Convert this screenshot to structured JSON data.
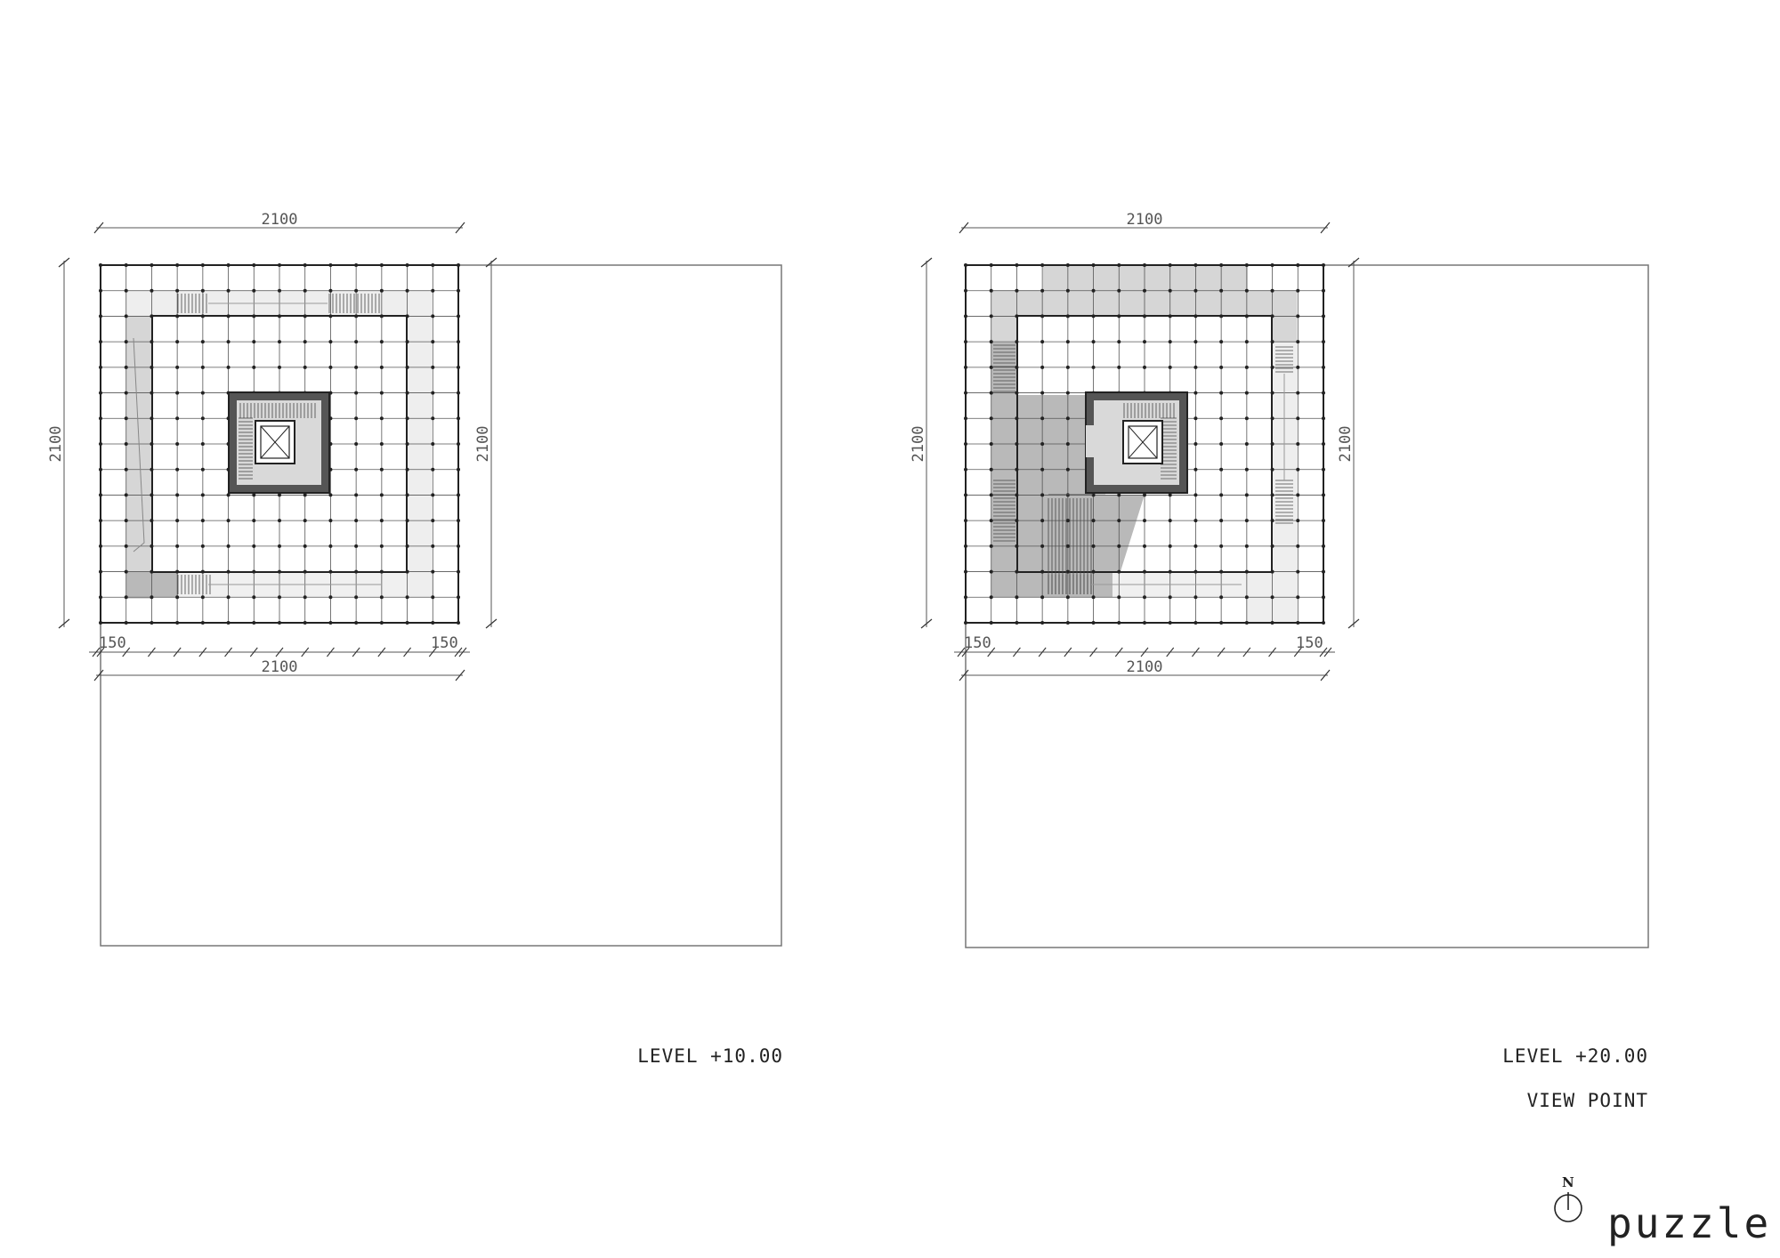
{
  "plans": [
    {
      "id": "level-10",
      "dim_top": "2100",
      "dim_left": "2100",
      "dim_right": "2100",
      "dim_bottom": "2100",
      "dim_offset_left": "150",
      "dim_offset_right": "150",
      "captions": [
        "LEVEL +10.00"
      ]
    },
    {
      "id": "level-20",
      "dim_top": "2100",
      "dim_left": "2100",
      "dim_right": "2100",
      "dim_bottom": "2100",
      "dim_offset_left": "150",
      "dim_offset_right": "150",
      "captions": [
        "LEVEL +20.00",
        "VIEW POINT"
      ]
    }
  ],
  "north_label": "N",
  "brand": "puzzle",
  "colors": {
    "line": "#222222",
    "thin_line": "#555555",
    "light_fill": "#eeeeee",
    "mid_fill": "#d6d6d6",
    "dark_fill": "#b9b9b9",
    "core_wall": "#555555"
  }
}
